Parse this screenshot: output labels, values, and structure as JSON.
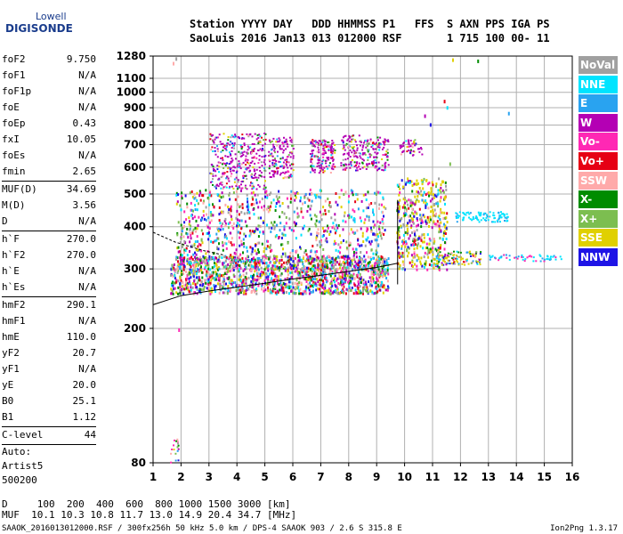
{
  "logo": {
    "line1": "Lowell",
    "line2": "DIGISONDE"
  },
  "header": {
    "line1": "Station YYYY DAY   DDD HHMMSS P1   FFS  S AXN PPS IGA PS",
    "line2": "SaoLuis 2016 Jan13 013 012000 RSF       1 715 100 00- 11"
  },
  "params": {
    "group1": [
      {
        "k": "foF2",
        "v": "9.750"
      },
      {
        "k": "foF1",
        "v": "N/A"
      },
      {
        "k": "foF1p",
        "v": "N/A"
      },
      {
        "k": "foE",
        "v": "N/A"
      },
      {
        "k": "foEp",
        "v": "0.43"
      },
      {
        "k": "fxI",
        "v": "10.05"
      },
      {
        "k": "foEs",
        "v": "N/A"
      },
      {
        "k": "fmin",
        "v": "2.65"
      }
    ],
    "group2": [
      {
        "k": "MUF(D)",
        "v": "34.69"
      },
      {
        "k": "M(D)",
        "v": "3.56"
      },
      {
        "k": "D",
        "v": "N/A"
      }
    ],
    "group3": [
      {
        "k": "h`F",
        "v": "270.0"
      },
      {
        "k": "h`F2",
        "v": "270.0"
      },
      {
        "k": "h`E",
        "v": "N/A"
      },
      {
        "k": "h`Es",
        "v": "N/A"
      }
    ],
    "group4": [
      {
        "k": "hmF2",
        "v": "290.1"
      },
      {
        "k": "hmF1",
        "v": "N/A"
      },
      {
        "k": "hmE",
        "v": "110.0"
      },
      {
        "k": "yF2",
        "v": "20.7"
      },
      {
        "k": "yF1",
        "v": "N/A"
      },
      {
        "k": "yE",
        "v": "20.0"
      },
      {
        "k": "B0",
        "v": "25.1"
      },
      {
        "k": "B1",
        "v": "1.12"
      }
    ],
    "clevel": {
      "k": "C-level",
      "v": "44"
    },
    "auto": [
      "Auto:",
      "Artist5",
      "500200"
    ]
  },
  "legend": [
    {
      "label": "NoVal",
      "color": "#a0a0a0"
    },
    {
      "label": "NNE",
      "color": "#00e4ff"
    },
    {
      "label": "E",
      "color": "#29a3f0"
    },
    {
      "label": "W",
      "color": "#b400b4"
    },
    {
      "label": "Vo-",
      "color": "#ff28b4"
    },
    {
      "label": "Vo+",
      "color": "#e60014"
    },
    {
      "label": "SSW",
      "color": "#ffaaaa"
    },
    {
      "label": "X-",
      "color": "#008c00"
    },
    {
      "label": "X+",
      "color": "#7cbe50"
    },
    {
      "label": "SSE",
      "color": "#e0d000"
    },
    {
      "label": "NNW",
      "color": "#1e14e6"
    }
  ],
  "muf": {
    "line1": "D     100  200  400  600  800 1000 1500 3000 [km]",
    "line2": "MUF  10.1 10.3 10.8 11.7 13.0 14.9 20.4 34.7 [MHz]"
  },
  "footer": "SAAOK_2016013012000.RSF / 300fx256h 50 kHz 5.0 km / DPS-4 SAAOK 903 / 2.6 S 315.8 E",
  "version": "Ion2Png 1.3.17",
  "chart_data": {
    "type": "scatter",
    "xlabel": "",
    "ylabel": "",
    "xlim": [
      1,
      16
    ],
    "ylim": [
      80,
      1280
    ],
    "yscale": "log",
    "xticks": [
      1,
      2,
      3,
      4,
      5,
      6,
      7,
      8,
      9,
      10,
      11,
      12,
      13,
      14,
      15,
      16
    ],
    "yticks": [
      80,
      200,
      300,
      400,
      500,
      600,
      700,
      800,
      900,
      1000,
      1100,
      1280
    ],
    "grid": true,
    "legend_position": "right",
    "clusters": [
      {
        "x": [
          1.6,
          9.4
        ],
        "y": [
          255,
          330
        ],
        "n": 1500
      },
      {
        "x": [
          1.8,
          9.3
        ],
        "y": [
          300,
          520
        ],
        "n": 900
      },
      {
        "x": [
          3.0,
          5.0
        ],
        "y": [
          520,
          760
        ],
        "n": 350
      },
      {
        "x": [
          5.1,
          6.0
        ],
        "y": [
          560,
          740
        ],
        "n": 150
      },
      {
        "x": [
          6.6,
          7.5
        ],
        "y": [
          580,
          730
        ],
        "n": 160
      },
      {
        "x": [
          7.7,
          9.4
        ],
        "y": [
          590,
          750
        ],
        "n": 220
      },
      {
        "x": [
          9.7,
          11.5
        ],
        "y": [
          300,
          560
        ],
        "n": 450
      },
      {
        "x": [
          9.8,
          10.6
        ],
        "y": [
          650,
          730
        ],
        "n": 50
      },
      {
        "x": [
          11.1,
          12.7
        ],
        "y": [
          310,
          340
        ],
        "n": 110
      },
      {
        "x": [
          11.8,
          13.7
        ],
        "y": [
          415,
          445
        ],
        "n": 90
      },
      {
        "x": [
          13.0,
          15.6
        ],
        "y": [
          318,
          332
        ],
        "n": 55
      },
      {
        "x": [
          1.6,
          1.9
        ],
        "y": [
          80,
          95
        ],
        "n": 18
      }
    ],
    "trace": {
      "x": [
        1.0,
        2,
        3,
        4,
        5,
        6,
        7,
        8,
        9,
        9.75
      ],
      "y": [
        235,
        250,
        258,
        265,
        272,
        280,
        287,
        295,
        303,
        312
      ]
    },
    "dashed": {
      "x": [
        1.0,
        1.8,
        2.8,
        3.5
      ],
      "y": [
        385,
        360,
        340,
        330
      ]
    },
    "vertical_line": {
      "x": 9.75,
      "y": [
        270,
        480
      ]
    },
    "markers": [
      {
        "x": 1.9,
        "y": 200
      },
      {
        "x": 10.7,
        "y": 860
      },
      {
        "x": 10.9,
        "y": 810
      },
      {
        "x": 11.6,
        "y": 620
      },
      {
        "x": 11.7,
        "y": 1260
      },
      {
        "x": 12.6,
        "y": 1250
      },
      {
        "x": 11.4,
        "y": 950
      },
      {
        "x": 11.5,
        "y": 910
      },
      {
        "x": 13.7,
        "y": 875
      },
      {
        "x": 1.8,
        "y": 1270
      },
      {
        "x": 1.7,
        "y": 1230
      }
    ]
  }
}
